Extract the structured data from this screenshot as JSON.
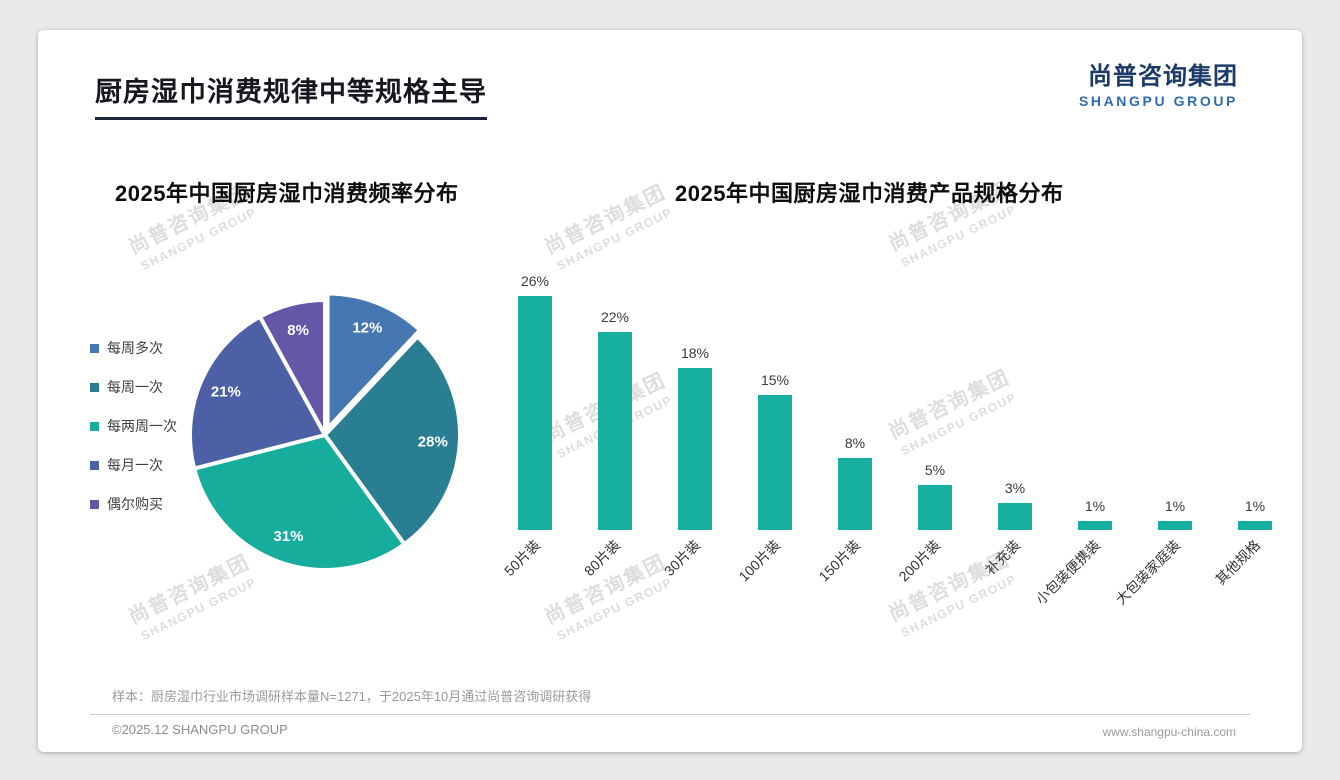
{
  "header": {
    "title": "厨房湿巾消费规律中等规格主导",
    "logo": {
      "cn": "尚普咨询集团",
      "en": "SHANGPU GROUP"
    }
  },
  "watermark": {
    "line1": "尚普咨询集团",
    "line2": "SHANGPU GROUP"
  },
  "chart_data": [
    {
      "type": "pie",
      "title": "2025年中国厨房湿巾消费频率分布",
      "legend_position": "left",
      "slices": [
        {
          "label": "每周多次",
          "value": 12,
          "display": "12%",
          "color": "#4577b0"
        },
        {
          "label": "每周一次",
          "value": 28,
          "display": "28%",
          "color": "#2a7e92"
        },
        {
          "label": "每两周一次",
          "value": 31,
          "display": "31%",
          "color": "#16ad9d"
        },
        {
          "label": "每月一次",
          "value": 21,
          "display": "21%",
          "color": "#4e60a5"
        },
        {
          "label": "偶尔购买",
          "value": 8,
          "display": "8%",
          "color": "#6457a8"
        }
      ]
    },
    {
      "type": "bar",
      "title": "2025年中国厨房湿巾消费产品规格分布",
      "categories": [
        "50片装",
        "80片装",
        "30片装",
        "100片装",
        "150片装",
        "200片装",
        "补充装",
        "小包装便携装",
        "大包装家庭装",
        "其他规格"
      ],
      "values": [
        26,
        22,
        18,
        15,
        8,
        5,
        3,
        1,
        1,
        1
      ],
      "value_labels": [
        "26%",
        "22%",
        "18%",
        "15%",
        "8%",
        "5%",
        "3%",
        "1%",
        "1%",
        "1%"
      ],
      "bar_color": "#17b0a0",
      "ylim": [
        0,
        30
      ],
      "grid": false
    }
  ],
  "footer": {
    "note": "样本：厨房湿巾行业市场调研样本量N=1271，于2025年10月通过尚普咨询调研获得",
    "copyright": "©2025.12 SHANGPU GROUP",
    "website": "www.shangpu-china.com"
  }
}
